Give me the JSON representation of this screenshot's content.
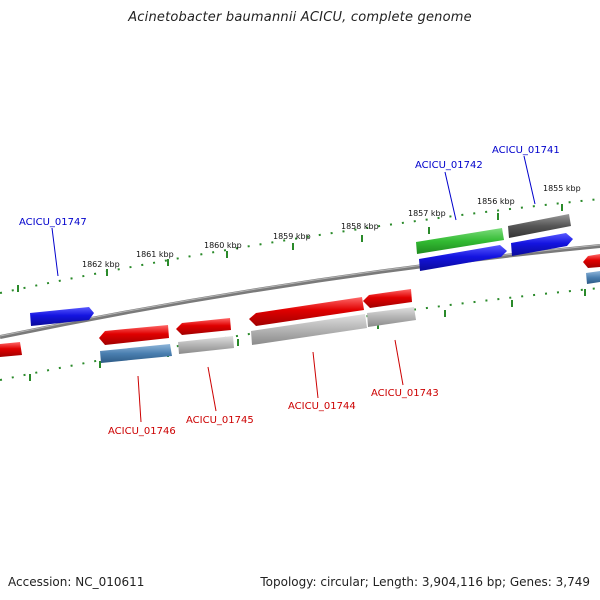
{
  "title": "Acinetobacter baumannii ACICU, complete genome",
  "accession": "Accession: NC_010611",
  "summary": "Topology: circular; Length: 3,904,116 bp; Genes: 3,749",
  "colors": {
    "backbone": "#7a7a7a",
    "tick": "#2a8a2a",
    "forward_label": "#0000cc",
    "reverse_label": "#cc0000",
    "cds_red": "#e00000",
    "cds_blue": "#1a1ae0",
    "cds_green": "#33bb33",
    "cds_dark": "#555555",
    "rna_gray": "#b0b0b0",
    "rna_steel": "#4a7fb0"
  },
  "scale_labels": [
    "1862 kbp",
    "1861 kbp",
    "1860 kbp",
    "1859 kbp",
    "1858 kbp",
    "1857 kbp",
    "1856 kbp",
    "1855 kbp"
  ],
  "forward_gene_labels": [
    "ACICU_01747",
    "ACICU_01742",
    "ACICU_01741"
  ],
  "reverse_gene_labels": [
    "ACICU_01746",
    "ACICU_01745",
    "ACICU_01744",
    "ACICU_01743"
  ]
}
